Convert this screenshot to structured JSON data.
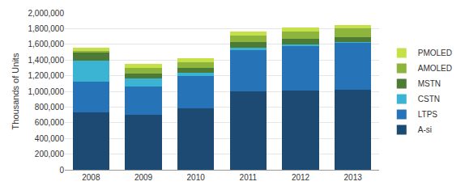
{
  "chart_data": {
    "type": "bar",
    "stacked": true,
    "grid": true,
    "legend": "right",
    "y_label": "Thousands of Units",
    "categories": [
      "2008",
      "2009",
      "2010",
      "2011",
      "2012",
      "2013"
    ],
    "series": [
      {
        "name": "A-si",
        "color": "#1c4a72",
        "values": [
          730000,
          700000,
          780000,
          1000000,
          1010000,
          1020000
        ]
      },
      {
        "name": "LTPS",
        "color": "#2673b8",
        "values": [
          390000,
          360000,
          420000,
          530000,
          570000,
          600000
        ]
      },
      {
        "name": "CSTN",
        "color": "#3bb3d3",
        "values": [
          270000,
          100000,
          40000,
          30000,
          20000,
          10000
        ]
      },
      {
        "name": "MSTN",
        "color": "#4d7a35",
        "values": [
          100000,
          70000,
          60000,
          70000,
          70000,
          60000
        ]
      },
      {
        "name": "AMOLED",
        "color": "#8db43c",
        "values": [
          30000,
          70000,
          70000,
          80000,
          90000,
          110000
        ]
      },
      {
        "name": "PMOLED",
        "color": "#c6e04a",
        "values": [
          35000,
          50000,
          50000,
          50000,
          50000,
          50000
        ]
      }
    ],
    "ylim": [
      0,
      2000000
    ],
    "yticks": [
      0,
      {
        "value": 200000,
        "label": "200,000"
      },
      {
        "value": 400000,
        "label": "400,000"
      },
      {
        "value": 600000,
        "label": "600,000"
      },
      {
        "value": 800000,
        "label": "800,000"
      },
      {
        "value": 1000000,
        "label": "1,000,000"
      },
      {
        "value": 1200000,
        "label": "1,200,000"
      },
      {
        "value": 1400000,
        "label": "1,400,000"
      },
      {
        "value": 1600000,
        "label": "1,600,000"
      },
      {
        "value": 1800000,
        "label": "1,800,000"
      },
      {
        "value": 2000000,
        "label": "2,000,000"
      }
    ]
  }
}
